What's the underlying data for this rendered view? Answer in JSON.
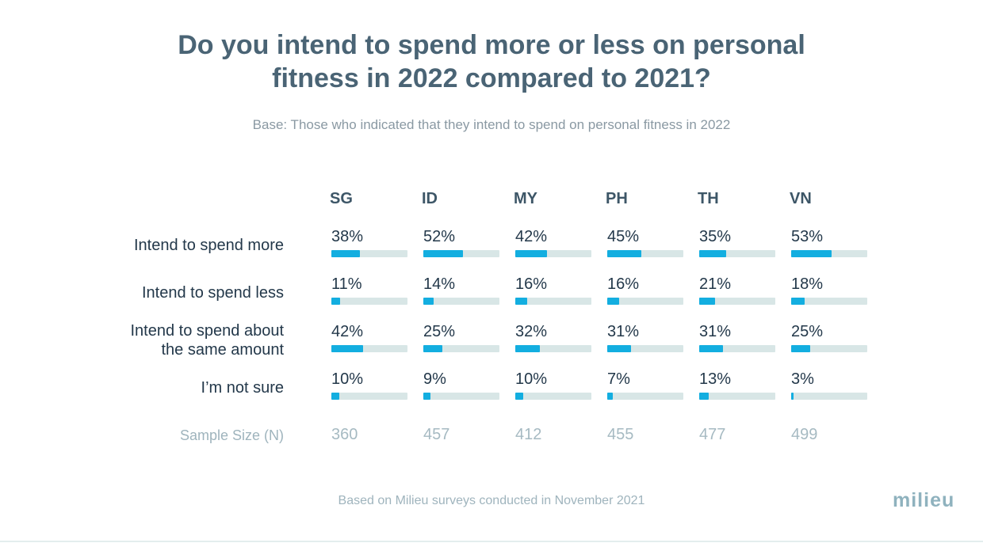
{
  "chart_data": {
    "type": "bar",
    "title_line1": "Do you intend to spend more or less on personal",
    "title_line2": "fitness in 2022 compared to 2021?",
    "subtitle": "Base: Those who indicated that they intend to spend on personal fitness in 2022",
    "categories": [
      "SG",
      "ID",
      "MY",
      "PH",
      "TH",
      "VN"
    ],
    "rows": [
      {
        "label_lines": [
          "Intend to spend more"
        ],
        "values": [
          38,
          52,
          42,
          45,
          35,
          53
        ]
      },
      {
        "label_lines": [
          "Intend to spend less"
        ],
        "values": [
          11,
          14,
          16,
          16,
          21,
          18
        ]
      },
      {
        "label_lines": [
          "Intend to spend about",
          "the same amount"
        ],
        "values": [
          42,
          25,
          32,
          31,
          31,
          25
        ]
      },
      {
        "label_lines": [
          "I’m not sure"
        ],
        "values": [
          10,
          9,
          10,
          7,
          13,
          3
        ]
      }
    ],
    "value_suffix": "%",
    "ylim": [
      0,
      100
    ],
    "sample_size_label": "Sample Size (N)",
    "sample_sizes": [
      360,
      457,
      412,
      455,
      477,
      499
    ]
  },
  "footer": "Based on Milieu surveys conducted in November 2021",
  "logo_text": "milieu",
  "colors": {
    "bar_fill": "#13aee0",
    "bar_track": "#d8e6e6"
  }
}
